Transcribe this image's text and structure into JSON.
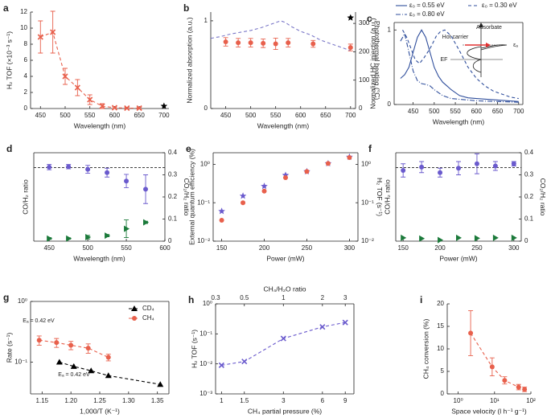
{
  "chart_data": [
    {
      "label": "a",
      "type": "line",
      "xlabel": "Wavelength (nm)",
      "ylabel": "H₂ TOF (×10⁻³ s⁻¹)",
      "xlim": [
        430,
        710
      ],
      "xticks": [
        450,
        500,
        550,
        600,
        650,
        700
      ],
      "ylim": [
        0,
        12
      ],
      "yticks": [
        0,
        2,
        4,
        6,
        8,
        10,
        12
      ],
      "series": [
        {
          "color": "#e8604c",
          "marker": "x",
          "line": "dashed",
          "x": [
            450,
            475,
            500,
            525,
            550,
            575,
            600,
            625,
            650
          ],
          "values": [
            8.9,
            9.5,
            4.0,
            2.6,
            1.1,
            0.3,
            0.1,
            0.05,
            0.05
          ],
          "errors": [
            2.0,
            2.6,
            1.0,
            1.0,
            0.6,
            0.3,
            0.1,
            0.1,
            0.1
          ]
        },
        {
          "color": "#000000",
          "marker": "star",
          "line": "none",
          "x": [
            700
          ],
          "values": [
            0.3
          ]
        }
      ]
    },
    {
      "label": "b",
      "type": "line",
      "xlabel": "Wavelength (nm)",
      "ylabel": "Normalized absorption (a.u.)",
      "ylabel_color": "#7b78c8",
      "y2label": "Photothermal heating (°C)",
      "y2label_color": "#e8604c",
      "xlim": [
        420,
        710
      ],
      "xticks": [
        450,
        500,
        550,
        600,
        650,
        700
      ],
      "ylim": [
        0,
        1.1
      ],
      "yticks": [
        0,
        1
      ],
      "y2lim": [
        0,
        340
      ],
      "y2ticks": [
        0,
        100,
        200,
        300
      ],
      "series": [
        {
          "color": "#7b78c8",
          "line": "dashed",
          "x": [
            420,
            440,
            460,
            480,
            500,
            520,
            540,
            560,
            570,
            580,
            600,
            620,
            640,
            660,
            680,
            700
          ],
          "values": [
            0.8,
            0.82,
            0.85,
            0.87,
            0.89,
            0.92,
            0.96,
            1.0,
            0.98,
            0.94,
            0.88,
            0.84,
            0.78,
            0.74,
            0.7,
            0.66
          ]
        },
        {
          "color": "#e8604c",
          "marker": "circle",
          "line": "none",
          "axis": "y2",
          "x": [
            450,
            475,
            500,
            525,
            550,
            575,
            625,
            700
          ],
          "values": [
            235,
            232,
            232,
            230,
            228,
            232,
            228,
            215
          ],
          "errors": [
            15,
            15,
            15,
            15,
            20,
            15,
            12,
            12
          ]
        },
        {
          "color": "#000000",
          "marker": "star",
          "line": "none",
          "axis": "y2",
          "x": [
            700
          ],
          "values": [
            320
          ]
        }
      ]
    },
    {
      "label": "c",
      "type": "line",
      "xlabel": "Wavelength (nm)",
      "ylabel": "Normalized HC injection (a.u.)",
      "xlim": [
        405,
        710
      ],
      "xticks": [
        450,
        500,
        550,
        600,
        650,
        700
      ],
      "ylim": [
        0,
        1.1
      ],
      "yticks": [
        0,
        1
      ],
      "annotations": [
        "Adsorbate",
        "Hot carrier",
        "εₐ",
        "EF"
      ],
      "series": [
        {
          "name": "ε₀ = 0.55 eV",
          "color": "#2f4e9c",
          "line": "solid",
          "x": [
            420,
            430,
            440,
            450,
            460,
            470,
            480,
            490,
            500,
            510,
            520,
            530,
            540,
            560,
            580,
            600,
            650,
            700
          ],
          "values": [
            0.35,
            0.4,
            0.5,
            0.7,
            0.9,
            1.0,
            0.9,
            0.7,
            0.5,
            0.38,
            0.3,
            0.25,
            0.2,
            0.12,
            0.09,
            0.08,
            0.06,
            0.04
          ]
        },
        {
          "name": "ε₀ = 0.30 eV",
          "color": "#2f4e9c",
          "line": "dashed",
          "x": [
            425,
            435,
            445,
            455,
            465,
            475,
            490,
            505,
            515,
            525,
            540,
            560,
            580,
            600,
            620,
            640,
            660,
            680,
            700
          ],
          "values": [
            1.0,
            0.9,
            0.75,
            0.6,
            0.55,
            0.62,
            0.75,
            0.92,
            0.98,
            1.0,
            0.92,
            0.72,
            0.5,
            0.35,
            0.25,
            0.18,
            0.14,
            0.1,
            0.08
          ]
        },
        {
          "name": "ε₀ = 0.80 eV",
          "color": "#2f4e9c",
          "line": "dashdot",
          "x": [
            420,
            430,
            440,
            450,
            460,
            470,
            480,
            490,
            500,
            520,
            540,
            560,
            580,
            600,
            650,
            700
          ],
          "values": [
            0.85,
            0.95,
            0.7,
            0.45,
            0.32,
            0.28,
            0.27,
            0.25,
            0.2,
            0.12,
            0.08,
            0.07,
            0.06,
            0.05,
            0.04,
            0.03
          ]
        }
      ]
    },
    {
      "label": "d",
      "type": "scatter",
      "xlabel": "Wavelength (nm)",
      "ylabel": "CO/H₂ ratio",
      "ylabel_color": "#6a5acd",
      "y2label": "CO₂/H₂ ratio",
      "y2label_color": "#1b7a3a",
      "xlim": [
        430,
        600
      ],
      "xticks": [
        450,
        500,
        550,
        600
      ],
      "ylim": [
        0,
        0.4
      ],
      "y2lim": [
        0,
        0.4
      ],
      "y2ticks": [
        0,
        0.1,
        0.2,
        0.3,
        0.4
      ],
      "reference_line": 0.333,
      "series": [
        {
          "color": "#6a5acd",
          "marker": "circle",
          "line": "none",
          "x": [
            450,
            475,
            500,
            525,
            550,
            575
          ],
          "values": [
            0.335,
            0.337,
            0.325,
            0.31,
            0.272,
            0.235
          ],
          "errors": [
            0.012,
            0.01,
            0.018,
            0.02,
            0.03,
            0.065
          ]
        },
        {
          "color": "#1b7a3a",
          "marker": "triangle-right",
          "line": "none",
          "axis": "y2",
          "x": [
            450,
            475,
            500,
            525,
            550,
            575
          ],
          "values": [
            0.012,
            0.012,
            0.018,
            0.025,
            0.056,
            0.085
          ],
          "errors": [
            0.004,
            0.003,
            0.008,
            0.005,
            0.04,
            0.005
          ]
        }
      ]
    },
    {
      "label": "e",
      "type": "scatter",
      "xlabel": "Power (mW)",
      "ylabel": "External quantum efficiency (%)",
      "ylabel_color": "#6a5acd",
      "y2label": "H₂ TOF (s⁻¹)",
      "y2label_color": "#e8604c",
      "xlim": [
        140,
        310
      ],
      "xticks": [
        150,
        200,
        250,
        300
      ],
      "yscale": "log",
      "ylim": [
        0.01,
        2
      ],
      "yticks": [
        {
          "value": 0.01,
          "label": "10⁻²"
        },
        {
          "value": 0.1,
          "label": "10⁻¹"
        },
        {
          "value": 1,
          "label": "10⁰"
        }
      ],
      "y2scale": "log",
      "y2lim": [
        0.01,
        2
      ],
      "y2ticks": [
        {
          "value": 0.01,
          "label": "10⁻²"
        },
        {
          "value": 0.1,
          "label": "10⁻¹"
        },
        {
          "value": 1,
          "label": "10⁰"
        }
      ],
      "series": [
        {
          "color": "#6a5acd",
          "marker": "star",
          "line": "none",
          "x": [
            150,
            175,
            200,
            225,
            250,
            275,
            300
          ],
          "values": [
            0.06,
            0.15,
            0.27,
            0.52,
            0.65,
            1.05,
            1.55
          ]
        },
        {
          "color": "#e8604c",
          "marker": "circle",
          "line": "none",
          "axis": "y2",
          "x": [
            150,
            175,
            200,
            225,
            250,
            275,
            300
          ],
          "values": [
            0.035,
            0.1,
            0.2,
            0.45,
            0.65,
            1.05,
            1.5
          ]
        }
      ]
    },
    {
      "label": "f",
      "type": "scatter",
      "xlabel": "Power (mW)",
      "ylabel": "CO/H₂ ratio",
      "ylabel_color": "#6a5acd",
      "y2label": "CO₂/H₂ ratio",
      "y2label_color": "#1b7a3a",
      "xlim": [
        140,
        310
      ],
      "xticks": [
        150,
        200,
        250,
        300
      ],
      "ylim": [
        0,
        0.4
      ],
      "y2lim": [
        0,
        0.4
      ],
      "y2ticks": [
        0,
        0.1,
        0.2,
        0.3,
        0.4
      ],
      "reference_line": 0.333,
      "series": [
        {
          "color": "#6a5acd",
          "marker": "circle",
          "line": "none",
          "x": [
            150,
            175,
            200,
            225,
            250,
            275,
            300
          ],
          "values": [
            0.32,
            0.335,
            0.31,
            0.33,
            0.35,
            0.34,
            0.35
          ],
          "errors": [
            0.03,
            0.025,
            0.02,
            0.03,
            0.045,
            0.02,
            0.01
          ]
        },
        {
          "color": "#1b7a3a",
          "marker": "triangle-right",
          "line": "none",
          "axis": "y2",
          "x": [
            150,
            175,
            200,
            225,
            250,
            275,
            300
          ],
          "values": [
            0.015,
            0.012,
            0.005,
            0.015,
            0.013,
            0.015,
            0.015
          ]
        }
      ]
    },
    {
      "label": "g",
      "type": "scatter",
      "xlabel": "1,000/T (K⁻¹)",
      "ylabel": "Rate (s⁻¹)",
      "xlim": [
        1.13,
        1.37
      ],
      "xticks": [
        1.15,
        {
          "value": 1.2,
          "label": "1.20"
        },
        1.25,
        {
          "value": 1.3,
          "label": "1.30"
        },
        1.35
      ],
      "yscale": "log",
      "ylim": [
        0.03,
        1
      ],
      "yticks": [
        {
          "value": 0.1,
          "label": "10⁻¹"
        },
        {
          "value": 1,
          "label": "10⁰"
        }
      ],
      "annotations": [
        "Eₐ = 0.42 eV",
        "Eₐ = 0.42 eV"
      ],
      "series": [
        {
          "name": "CD₄",
          "color": "#000000",
          "marker": "triangle",
          "line": "dashed",
          "x": [
            1.18,
            1.205,
            1.235,
            1.265,
            1.355
          ],
          "values": [
            0.1,
            0.085,
            0.072,
            0.06,
            0.043
          ]
        },
        {
          "name": "CH₄",
          "color": "#e8604c",
          "marker": "circle",
          "line": "dashed",
          "x": [
            1.145,
            1.175,
            1.2,
            1.23,
            1.265
          ],
          "values": [
            0.23,
            0.21,
            0.19,
            0.17,
            0.12
          ],
          "errors": [
            0.04,
            0.035,
            0.03,
            0.03,
            0.015
          ]
        }
      ]
    },
    {
      "label": "h",
      "type": "line",
      "xlabel": "CH₄ partial pressure (%)",
      "x2label": "CH₄/H₂O ratio",
      "ylabel": "H₂ TOF (s⁻¹)",
      "xscale": "log",
      "xlim": [
        0.9,
        10.5
      ],
      "xticks": [
        1,
        1.5,
        3,
        6,
        9
      ],
      "x2scale": "log",
      "x2lim": [
        0.3,
        3.5
      ],
      "x2ticks": [
        0.3,
        0.5,
        1,
        2,
        3
      ],
      "yscale": "log",
      "ylim": [
        0.001,
        1
      ],
      "yticks": [
        {
          "value": 0.001,
          "label": "10⁻³"
        },
        {
          "value": 0.01,
          "label": "10⁻²"
        },
        {
          "value": 0.1,
          "label": "10⁻¹"
        },
        {
          "value": 1,
          "label": "10⁰"
        }
      ],
      "series": [
        {
          "color": "#6a5acd",
          "marker": "x",
          "line": "dashed",
          "x": [
            1,
            1.5,
            3,
            6,
            9
          ],
          "values": [
            0.009,
            0.012,
            0.07,
            0.17,
            0.24
          ]
        }
      ]
    },
    {
      "label": "i",
      "type": "line",
      "xlabel": "Space velocity (l h⁻¹ g⁻¹)",
      "ylabel": "CH₄ conversion (%)",
      "xscale": "log",
      "xlim": [
        0.5,
        100
      ],
      "xticks": [
        {
          "value": 1,
          "label": "10⁰"
        },
        {
          "value": 10,
          "label": "10¹"
        },
        {
          "value": 100,
          "label": "10²"
        }
      ],
      "ylim": [
        0,
        20
      ],
      "yticks": [
        0,
        5,
        10,
        15,
        20
      ],
      "series": [
        {
          "color": "#e8604c",
          "marker": "circle",
          "line": "dashed",
          "x": [
            2.2,
            8.6,
            19,
            46,
            67
          ],
          "values": [
            13.5,
            6,
            3,
            1.5,
            1
          ],
          "errors": [
            5,
            2,
            0.8,
            0.6,
            0.5
          ]
        }
      ]
    }
  ]
}
